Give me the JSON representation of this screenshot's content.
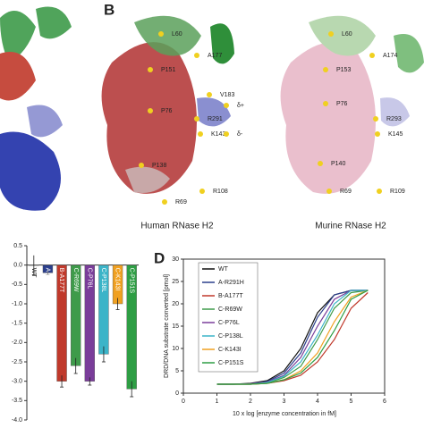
{
  "structures": {
    "letter": "B",
    "human": {
      "caption": "Human RNase H2",
      "residues": [
        "L60",
        "A177",
        "P151",
        "V183",
        "P76",
        "R291",
        "δ+",
        "K143",
        "δ-",
        "P138",
        "R69",
        "R108"
      ]
    },
    "murine": {
      "caption": "Murine RNase H2",
      "residues": [
        "L60",
        "A174",
        "P153",
        "P76",
        "R293",
        "K145",
        "P140",
        "R69",
        "R109"
      ]
    }
  },
  "chart_data": [
    {
      "type": "bar",
      "categories": [
        "WT",
        "A-R291H",
        "B-A177T",
        "C-R69W",
        "C-P76L",
        "C-P138L",
        "C-K143I",
        "C-P151S"
      ],
      "values": [
        0.0,
        -0.2,
        -3.0,
        -2.6,
        -3.0,
        -2.3,
        -1.0,
        -3.2
      ],
      "errors": [
        0.25,
        0.05,
        0.15,
        0.2,
        0.1,
        0.2,
        0.15,
        0.2
      ],
      "colors": [
        "#f4f4f4",
        "#2b3f8c",
        "#c0392b",
        "#3e9b4a",
        "#7a3d9a",
        "#3bb4c8",
        "#f0a020",
        "#2e9e44"
      ],
      "ylim": [
        0.5,
        -4.0
      ],
      "yticks": [
        {
          "value": 0.5,
          "label": "0.5"
        },
        {
          "value": 0,
          "label": "0.0"
        },
        {
          "value": -0.5,
          "label": "-0.5"
        },
        {
          "value": -1,
          "label": "-1.0"
        },
        {
          "value": -1.5,
          "label": "-1.5"
        },
        {
          "value": -2,
          "label": "-2.0"
        },
        {
          "value": -2.5,
          "label": "-2.5"
        },
        {
          "value": -3,
          "label": "-3.0"
        },
        {
          "value": -3.5,
          "label": "-3.5"
        },
        {
          "value": -4,
          "label": "-4.0"
        }
      ]
    },
    {
      "type": "line",
      "label": "D",
      "xlabel": "10 x log [enzyme concentration in fM]",
      "ylabel": "DRD/DNA substrate converted [pmol]",
      "x": [
        1,
        1.5,
        2,
        2.5,
        3,
        3.5,
        4,
        4.5,
        5,
        5.5
      ],
      "series": [
        {
          "name": "WT",
          "color": "#111111",
          "values": [
            2,
            2,
            2.2,
            2.8,
            5,
            10,
            18,
            22,
            23,
            23
          ]
        },
        {
          "name": "A-R291H",
          "color": "#2b3f8c",
          "values": [
            2,
            2,
            2.1,
            2.6,
            4.5,
            9,
            17,
            22,
            23,
            23
          ]
        },
        {
          "name": "B-A177T",
          "color": "#c0392b",
          "values": [
            2,
            2,
            2,
            2.2,
            2.8,
            4,
            7,
            12,
            19,
            22.5
          ]
        },
        {
          "name": "C-R69W",
          "color": "#3e9b4a",
          "values": [
            2,
            2,
            2,
            2.3,
            3.5,
            6,
            12,
            19,
            22.5,
            23
          ]
        },
        {
          "name": "C-P76L",
          "color": "#7a3d9a",
          "values": [
            2,
            2,
            2.1,
            2.5,
            4,
            8,
            15,
            21,
            23,
            23
          ]
        },
        {
          "name": "C-P138L",
          "color": "#3bb4c8",
          "values": [
            2,
            2,
            2,
            2.4,
            3.8,
            7,
            13,
            20,
            23,
            23
          ]
        },
        {
          "name": "C-K143I",
          "color": "#f0a020",
          "values": [
            2,
            2,
            2,
            2.2,
            3,
            5,
            9,
            16,
            21.5,
            23
          ]
        },
        {
          "name": "C-P151S",
          "color": "#2e9e44",
          "values": [
            2,
            2,
            2,
            2.2,
            3,
            4.5,
            8,
            14,
            21,
            23
          ]
        }
      ],
      "xlim": [
        0,
        6
      ],
      "xticks": [
        0,
        1,
        2,
        3,
        4,
        5,
        6
      ],
      "ylim": [
        0,
        30
      ],
      "yticks": [
        0,
        5,
        10,
        15,
        20,
        25,
        30
      ]
    }
  ]
}
